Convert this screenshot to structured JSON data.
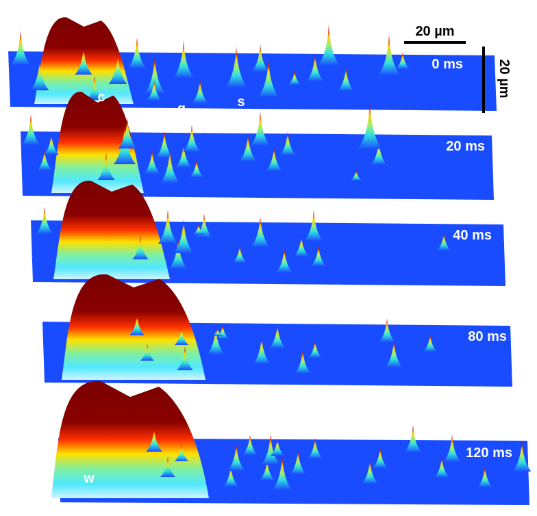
{
  "scale_bars": {
    "horizontal": "20 µm",
    "vertical": "20 µm"
  },
  "panels": [
    {
      "label": "0 ms"
    },
    {
      "label": "20 ms"
    },
    {
      "label": "40 ms"
    },
    {
      "label": "80 ms"
    },
    {
      "label": "120 ms"
    }
  ],
  "markers": [
    {
      "label": "c"
    },
    {
      "label": "q"
    },
    {
      "label": "s"
    },
    {
      "label": "w"
    }
  ]
}
